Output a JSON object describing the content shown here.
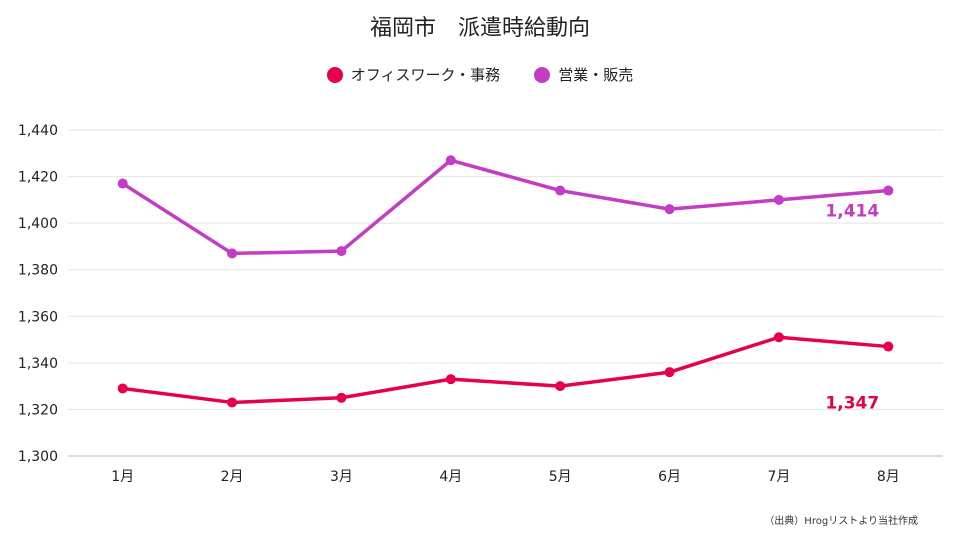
{
  "chart_data": {
    "type": "line",
    "title": "福岡市　派遣時給動向",
    "categories": [
      "1月",
      "2月",
      "3月",
      "4月",
      "5月",
      "6月",
      "7月",
      "8月"
    ],
    "ylim": [
      1300,
      1440
    ],
    "yticks": [
      1300,
      1320,
      1340,
      1360,
      1380,
      1400,
      1420,
      1440
    ],
    "ytick_labels": [
      "1,300",
      "1,320",
      "1,340",
      "1,360",
      "1,380",
      "1,400",
      "1,420",
      "1,440"
    ],
    "grid": true,
    "legend_position": "top-center",
    "series": [
      {
        "name": "オフィスワーク・事務",
        "color": "#e6004c",
        "values": [
          1329,
          1323,
          1325,
          1333,
          1330,
          1336,
          1351,
          1347
        ],
        "end_label": "1,347"
      },
      {
        "name": "営業・販売",
        "color": "#c43bc4",
        "values": [
          1417,
          1387,
          1388,
          1427,
          1414,
          1406,
          1410,
          1414
        ],
        "end_label": "1,414"
      }
    ]
  },
  "source_note": "（出典）Hrogリストより当社作成"
}
